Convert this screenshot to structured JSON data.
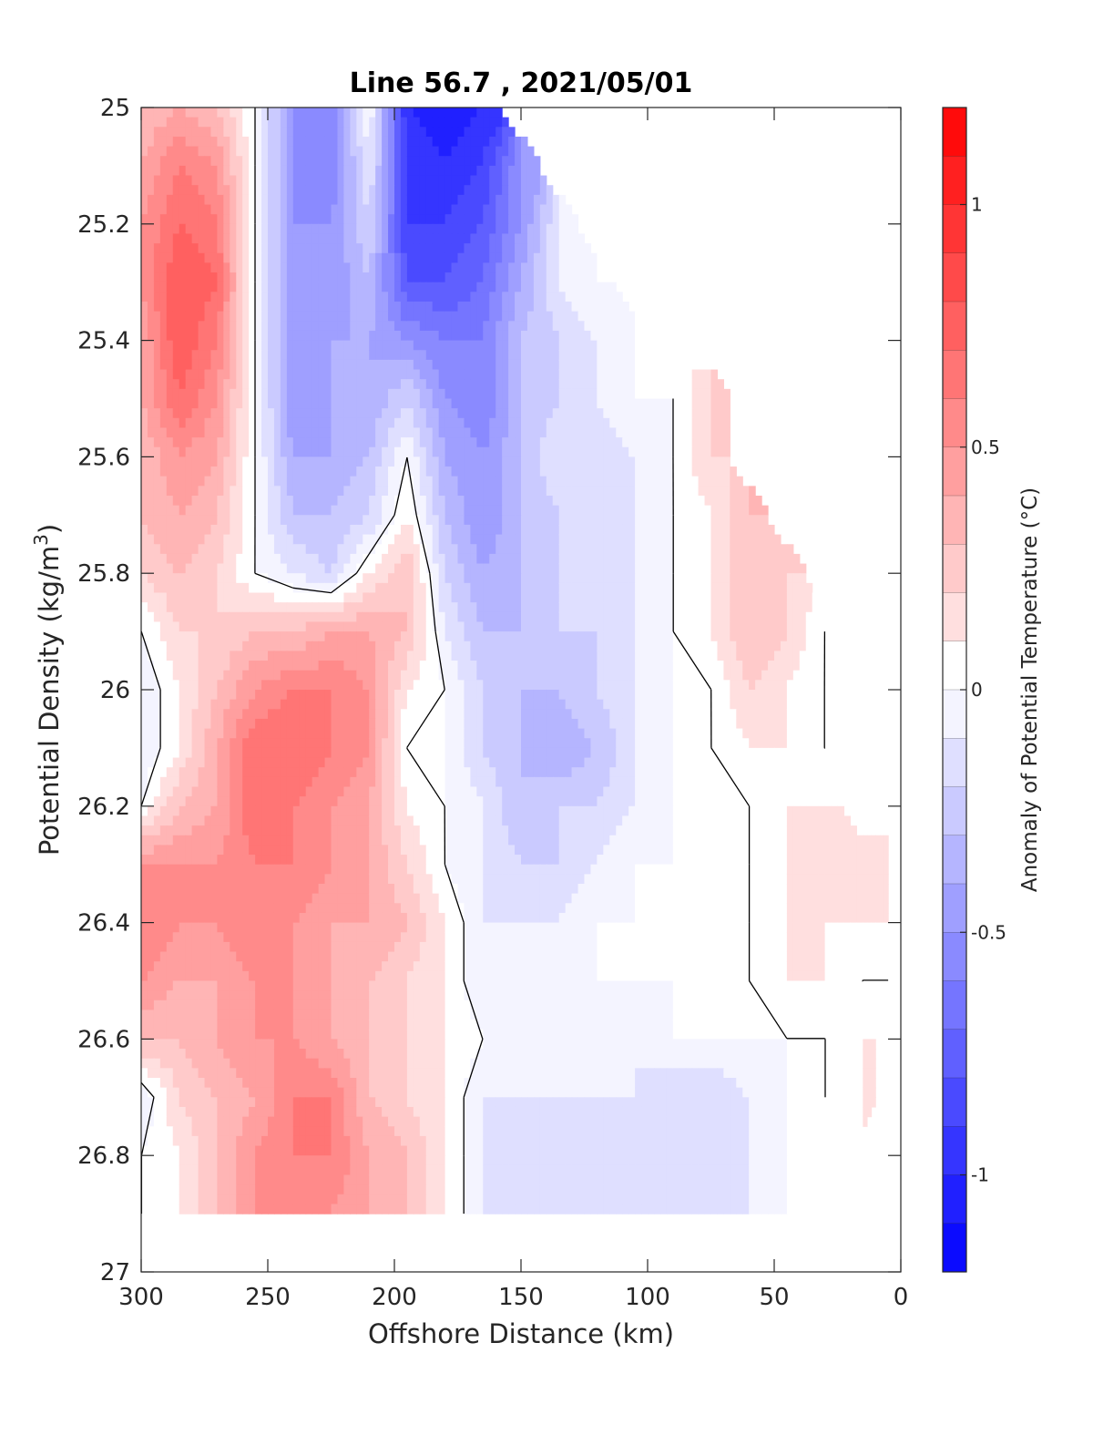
{
  "chart_data": {
    "type": "heatmap",
    "title": "Line 56.7 , 2021/05/01",
    "xlabel": "Offshore Distance (km)",
    "ylabel_main": "Potential Density (kg/m",
    "ylabel_sup": "3",
    "ylabel_end": ")",
    "xlim": [
      300,
      0
    ],
    "ylim": [
      25,
      27
    ],
    "x_ticks": [
      300,
      250,
      200,
      150,
      100,
      50,
      0
    ],
    "x_tick_labels": [
      "300",
      "250",
      "200",
      "150",
      "100",
      "50",
      "0"
    ],
    "y_ticks": [
      25,
      25.2,
      25.4,
      25.6,
      25.8,
      26,
      26.2,
      26.4,
      26.6,
      26.8,
      27
    ],
    "y_tick_labels": [
      "25",
      "25.2",
      "25.4",
      "25.6",
      "25.8",
      "26",
      "26.2",
      "26.4",
      "26.6",
      "26.8",
      "27"
    ],
    "colorbar": {
      "label": "Anomaly of Potential Temperature (°C)",
      "range": [
        -1.2,
        1.2
      ],
      "level_step": 0.1,
      "ticks": [
        1,
        0.5,
        0,
        -0.5,
        -1
      ],
      "tick_labels": [
        "1",
        "0.5",
        "0",
        "-0.5",
        "-1"
      ],
      "negative_color": "#0000ff",
      "positive_color": "#ff0000",
      "neutral_color": "#ffffff"
    },
    "data_extent": {
      "x_max": 300,
      "x_min": 5,
      "y_max": 26.9
    },
    "grid": {
      "x": [
        300,
        285,
        270,
        255,
        240,
        225,
        210,
        195,
        180,
        165,
        150,
        135,
        120,
        105,
        90,
        75,
        60,
        45,
        30,
        15,
        5
      ],
      "y": [
        25.0,
        25.1,
        25.2,
        25.3,
        25.4,
        25.5,
        25.6,
        25.7,
        25.8,
        25.9,
        26.0,
        26.1,
        26.2,
        26.3,
        26.4,
        26.5,
        26.6,
        26.7,
        26.8,
        26.9
      ],
      "values": [
        [
          0.3,
          0.4,
          0.3,
          0.0,
          -0.5,
          -0.6,
          0.0,
          -1.0,
          -1.1,
          -1.0,
          null,
          null,
          null,
          null,
          null,
          null,
          null,
          null,
          null,
          null,
          null
        ],
        [
          0.4,
          0.6,
          0.5,
          0.0,
          -0.5,
          -0.6,
          -0.1,
          -0.9,
          -1.0,
          -0.9,
          -0.5,
          null,
          null,
          null,
          null,
          null,
          null,
          null,
          null,
          null,
          null
        ],
        [
          0.5,
          0.7,
          0.6,
          0.0,
          -0.5,
          -0.5,
          -0.2,
          -0.9,
          -0.9,
          -0.8,
          -0.5,
          -0.1,
          null,
          null,
          null,
          null,
          null,
          null,
          null,
          null,
          null
        ],
        [
          0.5,
          0.8,
          0.7,
          0.0,
          -0.5,
          -0.5,
          -0.3,
          -0.8,
          -0.8,
          -0.7,
          -0.4,
          -0.1,
          0.0,
          null,
          null,
          null,
          null,
          null,
          null,
          null,
          null
        ],
        [
          0.4,
          0.8,
          0.6,
          0.0,
          -0.5,
          -0.4,
          -0.4,
          -0.5,
          -0.6,
          -0.6,
          -0.3,
          -0.2,
          -0.1,
          0.0,
          null,
          null,
          null,
          null,
          null,
          null,
          null
        ],
        [
          0.4,
          0.7,
          0.5,
          0.0,
          -0.5,
          -0.4,
          -0.4,
          -0.2,
          -0.5,
          -0.6,
          -0.3,
          -0.2,
          -0.1,
          0.0,
          0.0,
          0.2,
          null,
          null,
          null,
          null,
          null
        ],
        [
          0.3,
          0.5,
          0.4,
          0.0,
          -0.4,
          -0.4,
          -0.3,
          0.0,
          -0.4,
          -0.5,
          -0.3,
          -0.1,
          -0.2,
          -0.1,
          0.0,
          0.2,
          null,
          null,
          null,
          null,
          null
        ],
        [
          0.3,
          0.4,
          0.3,
          0.0,
          -0.3,
          -0.3,
          -0.2,
          0.1,
          -0.3,
          -0.5,
          -0.3,
          -0.2,
          -0.2,
          -0.1,
          0.0,
          0.1,
          0.3,
          null,
          null,
          null,
          null
        ],
        [
          0.2,
          0.3,
          0.2,
          0.0,
          -0.1,
          -0.2,
          0.1,
          0.3,
          -0.2,
          -0.4,
          -0.3,
          -0.2,
          -0.2,
          -0.1,
          0.0,
          0.1,
          0.3,
          0.2,
          null,
          null,
          null
        ],
        [
          0.0,
          0.2,
          0.2,
          0.3,
          0.3,
          0.4,
          0.4,
          0.3,
          -0.1,
          -0.3,
          -0.3,
          -0.2,
          -0.2,
          -0.1,
          0.0,
          0.1,
          0.3,
          0.2,
          0.0,
          null,
          null
        ],
        [
          -0.1,
          0.1,
          0.3,
          0.5,
          0.6,
          0.6,
          0.5,
          0.1,
          0.0,
          -0.2,
          -0.3,
          -0.3,
          -0.2,
          -0.1,
          0.0,
          0.0,
          0.2,
          0.1,
          0.0,
          null,
          null
        ],
        [
          -0.1,
          0.1,
          0.4,
          0.7,
          0.7,
          0.6,
          0.5,
          0.0,
          0.0,
          -0.2,
          -0.3,
          -0.4,
          -0.3,
          -0.1,
          0.0,
          0.0,
          0.1,
          0.1,
          0.0,
          null,
          null
        ],
        [
          0.0,
          0.3,
          0.4,
          0.7,
          0.6,
          0.5,
          0.4,
          0.1,
          0.0,
          -0.1,
          -0.3,
          -0.2,
          -0.2,
          -0.1,
          0.0,
          0.0,
          0.0,
          0.1,
          0.1,
          null,
          null
        ],
        [
          0.5,
          0.5,
          0.5,
          0.6,
          0.6,
          0.5,
          0.4,
          0.2,
          0.0,
          -0.1,
          -0.2,
          -0.2,
          -0.1,
          0.0,
          0.0,
          0.0,
          0.0,
          0.1,
          0.1,
          0.1,
          0.1
        ],
        [
          0.6,
          0.5,
          0.5,
          0.6,
          0.5,
          0.4,
          0.4,
          0.3,
          0.1,
          -0.1,
          -0.1,
          -0.1,
          0.0,
          0.0,
          0.0,
          0.0,
          0.0,
          0.1,
          0.1,
          0.1,
          0.1
        ],
        [
          0.5,
          0.4,
          0.4,
          0.5,
          0.5,
          0.4,
          0.3,
          0.2,
          0.1,
          -0.1,
          -0.1,
          0.0,
          0.0,
          0.0,
          0.0,
          0.0,
          0.0,
          0.1,
          0.1,
          0.0,
          0.0
        ],
        [
          0.3,
          0.3,
          0.4,
          0.5,
          0.5,
          0.4,
          0.3,
          0.2,
          0.1,
          0.0,
          -0.1,
          -0.1,
          0.0,
          -0.1,
          0.0,
          0.0,
          0.0,
          0.0,
          0.0,
          0.1,
          null
        ],
        [
          -0.1,
          0.2,
          0.3,
          0.4,
          0.6,
          0.6,
          0.3,
          0.2,
          0.1,
          -0.1,
          -0.1,
          -0.1,
          -0.1,
          -0.1,
          -0.2,
          -0.2,
          -0.1,
          0.0,
          0.0,
          0.1,
          null
        ],
        [
          0.0,
          0.1,
          0.3,
          0.5,
          0.6,
          0.6,
          0.4,
          0.3,
          0.1,
          -0.1,
          -0.2,
          -0.2,
          -0.1,
          -0.2,
          -0.2,
          -0.2,
          -0.1,
          0.0,
          0.0,
          null,
          null
        ],
        [
          0.0,
          0.1,
          0.3,
          0.5,
          0.6,
          0.5,
          0.4,
          0.3,
          0.1,
          -0.1,
          -0.2,
          -0.2,
          -0.1,
          -0.2,
          -0.2,
          -0.1,
          -0.1,
          0.0,
          0.0,
          null,
          null
        ]
      ]
    }
  }
}
